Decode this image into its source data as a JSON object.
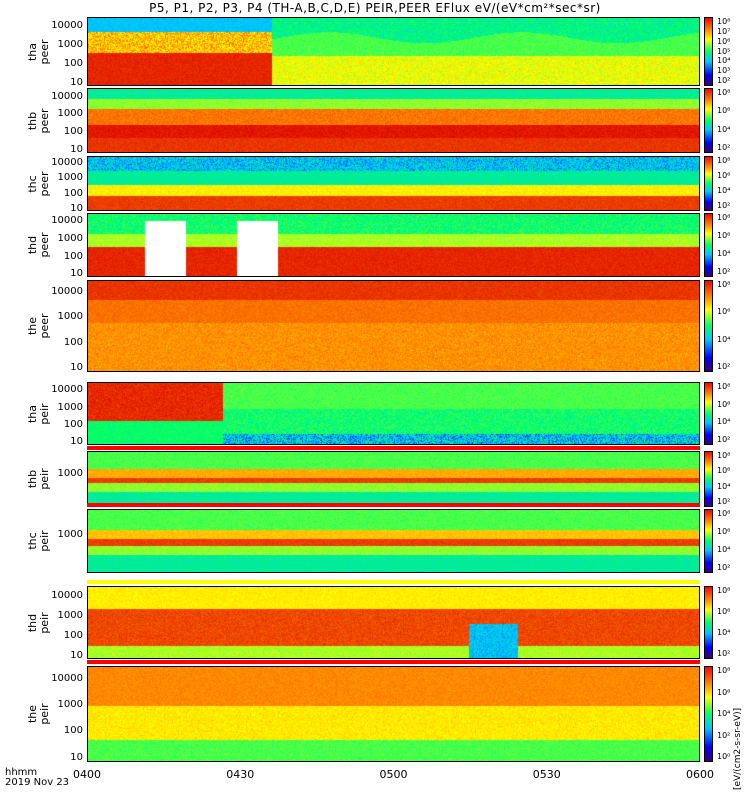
{
  "title": "P5, P1, P2, P3, P4 (TH-A,B,C,D,E) PEIR,PEER EFlux eV/(eV*cm²*sec*sr)",
  "colorbar_unit": "[eV/(cm2-s-sr-eV)]",
  "colors": {
    "low": "#3a007a",
    "mid": "#00ff66",
    "high": "#ff0000",
    "flag_red": "#ff0000",
    "flag_yellow": "#ffff00"
  },
  "x_axis": {
    "hhmm_label": "hhmm",
    "date_label": "2019 Nov 23",
    "ticks": [
      "0400",
      "0430",
      "0500",
      "0530",
      "0600"
    ]
  },
  "chart_data": {
    "type": "heatmap",
    "x_range_minutes": [
      240,
      360
    ],
    "panels": [
      {
        "label": "tha peer",
        "y_scale": "log",
        "y_range_eV": [
          7,
          30000
        ],
        "y_ticks": [
          "10000",
          "1000",
          "100",
          "10"
        ],
        "cbar_ticks": [
          "10⁸",
          "10⁷",
          "10⁶",
          "10⁵",
          "10⁴",
          "10³",
          "10²"
        ]
      },
      {
        "label": "thb peer",
        "y_scale": "log",
        "y_range_eV": [
          7,
          30000
        ],
        "y_ticks": [
          "10000",
          "1000",
          "100",
          "10"
        ],
        "cbar_ticks": [
          "10⁸",
          "10⁶",
          "10⁴",
          "10²"
        ]
      },
      {
        "label": "thc peer",
        "y_scale": "log",
        "y_range_eV": [
          7,
          30000
        ],
        "y_ticks": [
          "10000",
          "1000",
          "100",
          "10"
        ],
        "cbar_ticks": [
          "10⁸",
          "10⁶",
          "10⁴",
          "10²"
        ]
      },
      {
        "label": "thd peer",
        "y_scale": "log",
        "y_range_eV": [
          7,
          30000
        ],
        "y_ticks": [
          "10000",
          "1000",
          "100",
          "10"
        ],
        "cbar_ticks": [
          "10⁸",
          "10⁶",
          "10⁴",
          "10²"
        ],
        "data_gaps_minutes": [
          [
            251,
            259
          ],
          [
            269,
            277
          ]
        ]
      },
      {
        "label": "the peer",
        "y_scale": "log",
        "y_range_eV": [
          7,
          30000
        ],
        "y_ticks": [
          "10000",
          "1000",
          "100",
          "10"
        ],
        "cbar_ticks": [
          "10⁸",
          "10⁶",
          "10⁴",
          "10²"
        ]
      },
      {
        "label": "tha peir",
        "y_scale": "log",
        "y_range_eV": [
          7,
          30000
        ],
        "y_ticks": [
          "10000",
          "1000",
          "100",
          "10"
        ],
        "cbar_ticks": [
          "10⁸",
          "10⁶",
          "10⁴",
          "10²"
        ]
      },
      {
        "label": "thb peir",
        "y_scale": "log",
        "y_range_eV": [
          7,
          30000
        ],
        "y_ticks": [
          "1000"
        ],
        "cbar_ticks": [
          "10⁸",
          "10⁶",
          "10⁴",
          "10²"
        ]
      },
      {
        "label": "thc peir",
        "y_scale": "log",
        "y_range_eV": [
          7,
          30000
        ],
        "y_ticks": [
          "1000"
        ],
        "cbar_ticks": [
          "10⁸",
          "10⁶",
          "10⁴",
          "10²"
        ]
      },
      {
        "label": "thd peir",
        "y_scale": "log",
        "y_range_eV": [
          7,
          30000
        ],
        "y_ticks": [
          "10000",
          "1000",
          "100",
          "10"
        ],
        "cbar_ticks": [
          "10⁸",
          "10⁶",
          "10⁴",
          "10²"
        ]
      },
      {
        "label": "the peir",
        "y_scale": "log",
        "y_range_eV": [
          7,
          30000
        ],
        "y_ticks": [
          "10000",
          "1000",
          "100",
          "10"
        ],
        "cbar_ticks": [
          "10⁸",
          "10⁶",
          "10⁴",
          "10²",
          "10⁰"
        ]
      }
    ]
  }
}
